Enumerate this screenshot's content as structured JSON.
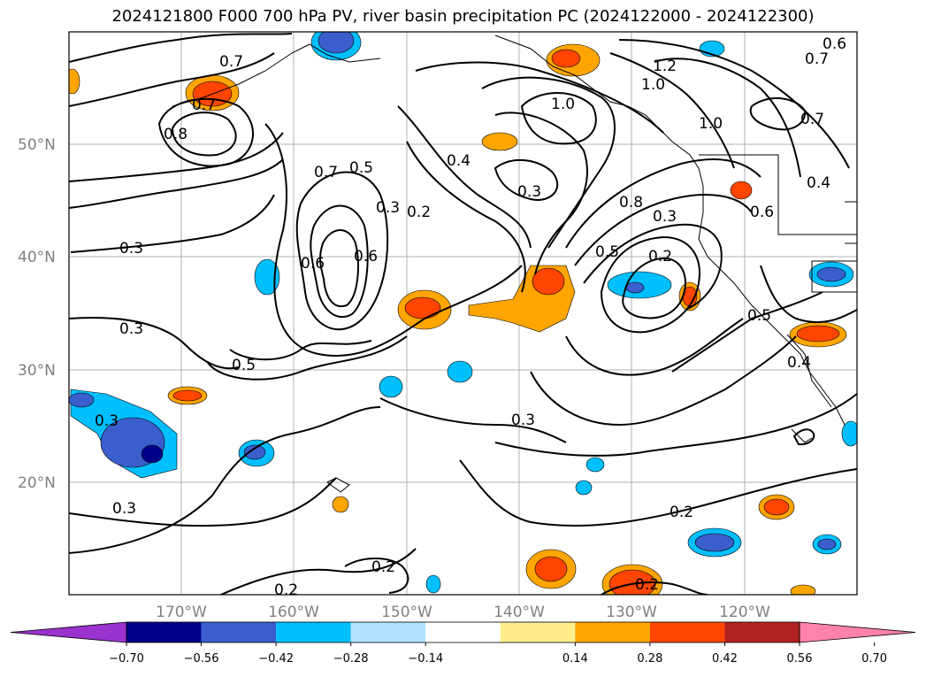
{
  "title": "2024121800 F000 700 hPa PV, river basin precipitation PC (2024122000 - 2024122300)",
  "axes": {
    "lat_labels": [
      "50°N",
      "40°N",
      "30°N",
      "20°N"
    ],
    "lon_labels": [
      "170°W",
      "160°W",
      "150°W",
      "140°W",
      "130°W",
      "120°W"
    ]
  },
  "contour_labels": [
    "0.7",
    "0.8",
    "0.3",
    "0.3",
    "0.5",
    "0.7",
    "0.7",
    "0.6",
    "0.5",
    "0.3",
    "0.6",
    "0.2",
    "0.4",
    "0.3",
    "1.0",
    "1.2",
    "1.0",
    "1.0",
    "0.7",
    "0.7",
    "0.8",
    "0.5",
    "0.3",
    "0.2",
    "0.6",
    "0.4",
    "0.5",
    "0.4",
    "0.3",
    "0.3",
    "0.3",
    "0.2",
    "0.2",
    "0.2",
    "0.2",
    "0.6"
  ],
  "colorbar": {
    "colors": [
      "#9a32cd",
      "#00008b",
      "#3a5fcd",
      "#00bfff",
      "#b0e2ff",
      "#ffffff",
      "#ffec8b",
      "#ffa500",
      "#ff4500",
      "#b22222",
      "#ff82ab"
    ],
    "tick_labels": [
      "−0.70",
      "−0.56",
      "−0.42",
      "−0.28",
      "−0.14",
      "0.14",
      "0.28",
      "0.42",
      "0.56",
      "0.70"
    ]
  }
}
